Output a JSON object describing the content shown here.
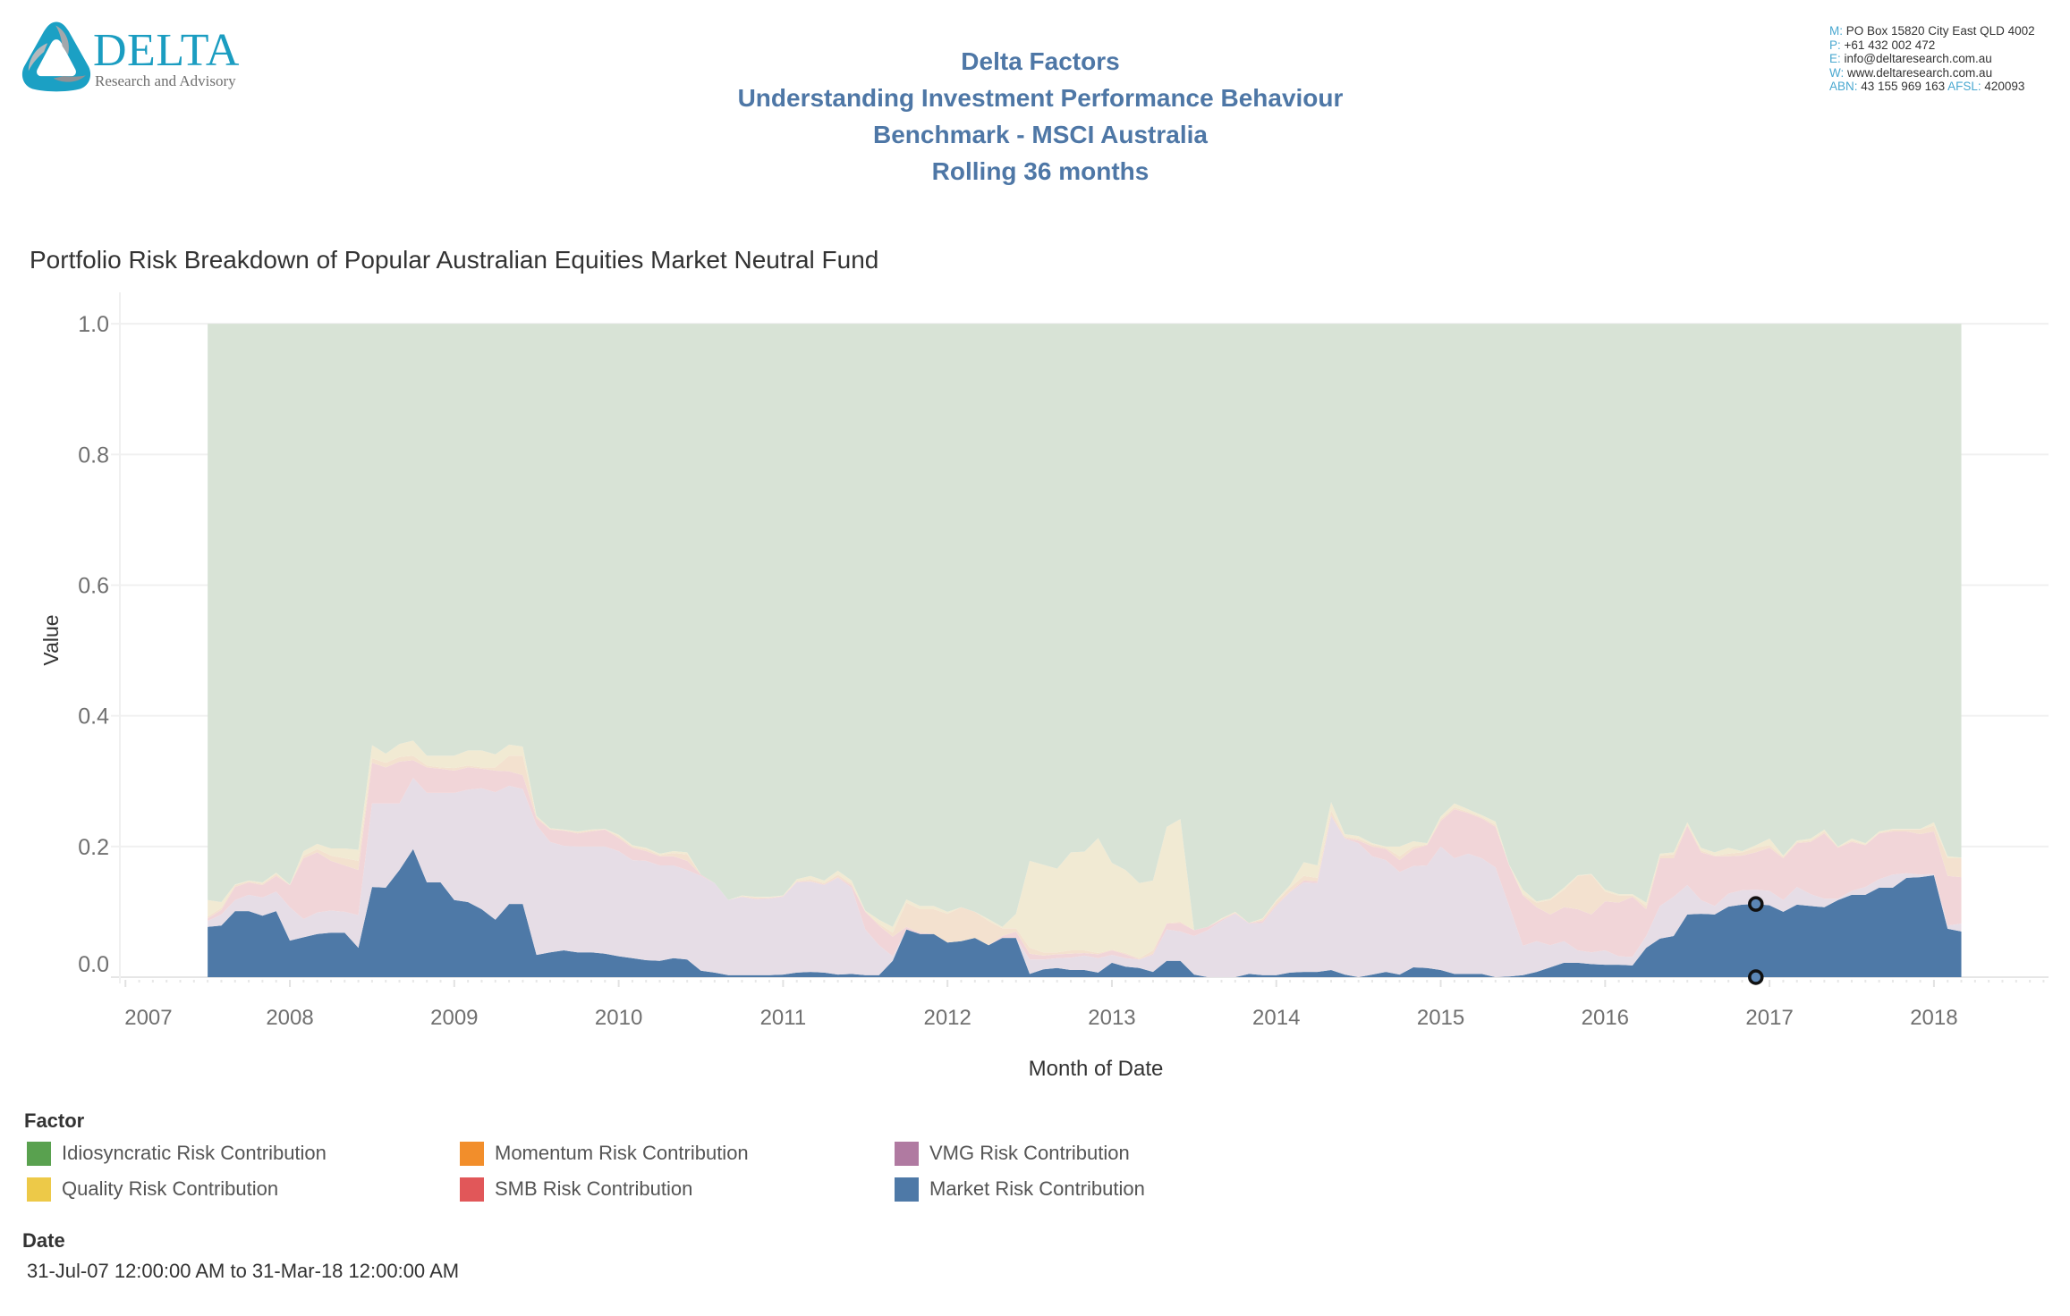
{
  "logo": {
    "name": "DELTA",
    "tagline": "Research and Advisory"
  },
  "header": {
    "lines": [
      "Delta Factors",
      "Understanding Investment Performance Behaviour",
      "Benchmark - MSCI Australia",
      "Rolling 36 months"
    ]
  },
  "contact": {
    "lines": [
      {
        "label": "M:",
        "value": " PO Box 15820 City East QLD 4002"
      },
      {
        "label": "P:",
        "value": " +61 432 002 472"
      },
      {
        "label": "E:",
        "value": " info@deltaresearch.com.au"
      },
      {
        "label": "W:",
        "value": " www.deltaresearch.com.au"
      }
    ],
    "abn_label": "ABN:",
    "abn": " 43 155 969 163 ",
    "afsl_label": " AFSL:",
    "afsl": " 420093"
  },
  "filters": {
    "date_title": "Date",
    "date_range": "31-Jul-07 12:00:00 AM to 31-Mar-18 12:00:00 AM"
  },
  "colors": {
    "header_text": "#4e77a6",
    "accent": "#1b9dc1"
  },
  "chart_data": {
    "type": "area",
    "stacked": true,
    "title": "Portfolio Risk Breakdown of Popular Australian Equities Market Neutral Fund",
    "xlabel": "Month of Date",
    "ylabel": "Value",
    "x_start": "2007-07",
    "x_end": "2018-03",
    "x_frequency": "monthly",
    "xlim": [
      2006.966,
      2018.697
    ],
    "ylim": [
      0,
      1.044
    ],
    "x_ticks": [
      "2007",
      "2008",
      "2009",
      "2010",
      "2011",
      "2012",
      "2013",
      "2014",
      "2015",
      "2016",
      "2017",
      "2018"
    ],
    "y_ticks": [
      {
        "value": 0,
        "label": "0.0"
      },
      {
        "value": 0.2,
        "label": "0.2"
      },
      {
        "value": 0.4,
        "label": "0.4"
      },
      {
        "value": 0.6,
        "label": "0.6"
      },
      {
        "value": 0.8,
        "label": "0.8"
      },
      {
        "value": 1.0,
        "label": "1.0"
      }
    ],
    "grid": "horizontal",
    "legend_title": "Factor",
    "legend_position": "bottom-left",
    "legend_order": [
      "Idiosyncratic Risk Contribution",
      "Momentum Risk Contribution",
      "VMG Risk Contribution",
      "Quality Risk Contribution",
      "SMB Risk Contribution",
      "Market Risk Contribution"
    ],
    "highlight": {
      "series": "Market Risk Contribution",
      "month_index": 113
    },
    "series": [
      {
        "name": "Market Risk Contribution",
        "color": "#4e79a7",
        "fill": "#4e79a7",
        "values": [
          0.077,
          0.079,
          0.101,
          0.101,
          0.094,
          0.101,
          0.056,
          0.061,
          0.066,
          0.068,
          0.068,
          0.045,
          0.138,
          0.137,
          0.164,
          0.196,
          0.145,
          0.145,
          0.118,
          0.115,
          0.104,
          0.088,
          0.112,
          0.112,
          0.034,
          0.038,
          0.041,
          0.038,
          0.038,
          0.036,
          0.032,
          0.029,
          0.026,
          0.025,
          0.029,
          0.027,
          0.01,
          0.007,
          0.003,
          0.003,
          0.003,
          0.003,
          0.004,
          0.007,
          0.008,
          0.007,
          0.004,
          0.005,
          0.003,
          0.003,
          0.025,
          0.073,
          0.066,
          0.066,
          0.053,
          0.055,
          0.06,
          0.049,
          0.06,
          0.06,
          0.005,
          0.012,
          0.014,
          0.011,
          0.011,
          0.007,
          0.022,
          0.016,
          0.014,
          0.008,
          0.025,
          0.025,
          0.004,
          0,
          0,
          0,
          0.005,
          0.003,
          0.003,
          0.007,
          0.008,
          0.008,
          0.011,
          0.004,
          0,
          0.004,
          0.008,
          0.004,
          0.015,
          0.014,
          0.011,
          0.005,
          0.005,
          0.005,
          0,
          0.001,
          0.003,
          0.008,
          0.015,
          0.022,
          0.022,
          0.02,
          0.019,
          0.019,
          0.018,
          0.045,
          0.059,
          0.063,
          0.096,
          0.097,
          0.096,
          0.108,
          0.111,
          0.112,
          0.11,
          0.1,
          0.111,
          0.109,
          0.107,
          0.118,
          0.126,
          0.126,
          0.137,
          0.137,
          0.152,
          0.153,
          0.156,
          0.074,
          0.07
        ]
      },
      {
        "name": "VMG Risk Contribution",
        "color": "#b07aa1",
        "fill": "#e6dde6",
        "values": [
          0.009,
          0.017,
          0.017,
          0.025,
          0.028,
          0.03,
          0.051,
          0.028,
          0.033,
          0.034,
          0.032,
          0.05,
          0.128,
          0.129,
          0.102,
          0.109,
          0.137,
          0.137,
          0.164,
          0.172,
          0.185,
          0.195,
          0.181,
          0.176,
          0.199,
          0.169,
          0.16,
          0.162,
          0.162,
          0.164,
          0.161,
          0.15,
          0.152,
          0.146,
          0.142,
          0.137,
          0.145,
          0.137,
          0.115,
          0.12,
          0.116,
          0.117,
          0.119,
          0.138,
          0.138,
          0.134,
          0.148,
          0.132,
          0.07,
          0.046,
          0.007,
          0,
          0,
          0,
          0,
          0,
          0,
          0,
          0,
          0,
          0.022,
          0.015,
          0.015,
          0.019,
          0.022,
          0.022,
          0.012,
          0.013,
          0.013,
          0.026,
          0.048,
          0.045,
          0.059,
          0.072,
          0.086,
          0.097,
          0.077,
          0.08,
          0.106,
          0.123,
          0.137,
          0.136,
          0.235,
          0.208,
          0.205,
          0.181,
          0.171,
          0.157,
          0.155,
          0.157,
          0.189,
          0.177,
          0.184,
          0.177,
          0.168,
          0.108,
          0.045,
          0.047,
          0.034,
          0.033,
          0.019,
          0.018,
          0.022,
          0.013,
          0.013,
          0.018,
          0.05,
          0.06,
          0.045,
          0.021,
          0.013,
          0.02,
          0.022,
          0.022,
          0.022,
          0.018,
          0.027,
          0.018,
          0.013,
          0.002,
          0.006,
          0.012,
          0.013,
          0.02,
          0.007,
          0.004,
          0.002,
          0.005,
          0.012
        ]
      },
      {
        "name": "SMB Risk Contribution",
        "color": "#e15759",
        "fill": "#f1d5d8",
        "values": [
          0.004,
          0.007,
          0.02,
          0.019,
          0.019,
          0.024,
          0.034,
          0.093,
          0.092,
          0.076,
          0.071,
          0.069,
          0.062,
          0.055,
          0.064,
          0.027,
          0.039,
          0.037,
          0.034,
          0.034,
          0.03,
          0.033,
          0.022,
          0.021,
          0.01,
          0.019,
          0.023,
          0.02,
          0.023,
          0.026,
          0.02,
          0.019,
          0.015,
          0.014,
          0.014,
          0.014,
          0.002,
          0,
          0,
          0,
          0.001,
          0.001,
          0.001,
          0.001,
          0.001,
          0.001,
          0.001,
          0.003,
          0.027,
          0.03,
          0.03,
          0.004,
          0.002,
          0,
          0,
          0,
          0,
          0,
          0.003,
          0.01,
          0.009,
          0.006,
          0.006,
          0.006,
          0.004,
          0.006,
          0.007,
          0.006,
          0,
          0.002,
          0.009,
          0.013,
          0.009,
          0.005,
          0.002,
          0.001,
          0.001,
          0.003,
          0.002,
          0.001,
          0.003,
          0.003,
          0.002,
          0.001,
          0.004,
          0.015,
          0.017,
          0.018,
          0.026,
          0.031,
          0.039,
          0.075,
          0.062,
          0.061,
          0.062,
          0.062,
          0.077,
          0.052,
          0.047,
          0.052,
          0.063,
          0.058,
          0.075,
          0.082,
          0.092,
          0.041,
          0.073,
          0.059,
          0.091,
          0.073,
          0.076,
          0.057,
          0.053,
          0.057,
          0.066,
          0.064,
          0.067,
          0.08,
          0.1,
          0.078,
          0.075,
          0.064,
          0.07,
          0.066,
          0.064,
          0.062,
          0.065,
          0.076,
          0.071
        ]
      },
      {
        "name": "Momentum Risk Contribution",
        "color": "#f28e2b",
        "fill": "#f3e1cf",
        "values": [
          0.003,
          0.003,
          0.003,
          0.002,
          0.002,
          0.003,
          0,
          0.004,
          0.005,
          0.008,
          0.011,
          0.014,
          0.007,
          0.007,
          0.007,
          0.007,
          0.003,
          0.002,
          0.004,
          0.003,
          0.002,
          0.005,
          0.024,
          0.03,
          0.003,
          0.001,
          0.001,
          0.002,
          0.002,
          0,
          0.003,
          0.002,
          0.003,
          0.002,
          0.005,
          0.01,
          0,
          0,
          0,
          0.001,
          0.002,
          0.001,
          0,
          0.001,
          0.003,
          0.002,
          0.004,
          0.003,
          0,
          0.003,
          0.006,
          0.037,
          0.036,
          0.038,
          0.044,
          0.052,
          0.04,
          0.037,
          0.012,
          0.005,
          0.009,
          0.005,
          0.003,
          0.005,
          0.004,
          0.002,
          0.001,
          0.002,
          0.002,
          0.005,
          0.001,
          0.002,
          0,
          0,
          0.001,
          0.001,
          0,
          0.003,
          0.005,
          0.006,
          0.007,
          0.005,
          0.007,
          0.002,
          0.003,
          0.003,
          0.002,
          0.006,
          0.004,
          0.001,
          0.003,
          0.003,
          0.002,
          0.002,
          0.003,
          0,
          0.002,
          0.007,
          0.022,
          0.027,
          0.051,
          0.061,
          0.015,
          0.011,
          0.002,
          0.005,
          0.004,
          0.006,
          0.002,
          0.003,
          0.001,
          0.004,
          0.005,
          0.007,
          0.004,
          0.002,
          0.002,
          0.002,
          0.003,
          0.001,
          0.002,
          0.001,
          0.001,
          0.003,
          0.003,
          0.007,
          0.009,
          0.027,
          0.029
        ]
      },
      {
        "name": "Quality Risk Contribution",
        "color": "#edc948",
        "fill": "#f1ead3",
        "values": [
          0.025,
          0.009,
          0.001,
          0.001,
          0.002,
          0.002,
          0.001,
          0.007,
          0.008,
          0.011,
          0.015,
          0.017,
          0.02,
          0.014,
          0.02,
          0.023,
          0.015,
          0.018,
          0.019,
          0.023,
          0.026,
          0.02,
          0.017,
          0.014,
          0.001,
          0.001,
          0.001,
          0.001,
          0.001,
          0.001,
          0.002,
          0.002,
          0.002,
          0.002,
          0.003,
          0.003,
          0,
          0,
          0,
          0.001,
          0.001,
          0.001,
          0.001,
          0.003,
          0.005,
          0.004,
          0.006,
          0.005,
          0.002,
          0.006,
          0.009,
          0.005,
          0.005,
          0.005,
          0.003,
          0,
          0,
          0.003,
          0.002,
          0.022,
          0.133,
          0.134,
          0.128,
          0.15,
          0.151,
          0.176,
          0.133,
          0.127,
          0.115,
          0.107,
          0.147,
          0.157,
          0,
          0,
          0.001,
          0.001,
          0,
          0.001,
          0.002,
          0.004,
          0.021,
          0.019,
          0.013,
          0.004,
          0.004,
          0.002,
          0.002,
          0.015,
          0.008,
          0.002,
          0.004,
          0.006,
          0.004,
          0.003,
          0.005,
          0.001,
          0.007,
          0.002,
          0.002,
          0.003,
          0.001,
          0.001,
          0.003,
          0.002,
          0.002,
          0.005,
          0.003,
          0.003,
          0.003,
          0.004,
          0.005,
          0.009,
          0.002,
          0.004,
          0.01,
          0.002,
          0.002,
          0.003,
          0.003,
          0.001,
          0.003,
          0.002,
          0.002,
          0.001,
          0.001,
          0.001,
          0.005,
          0.003,
          0.001
        ]
      },
      {
        "name": "Idiosyncratic Risk Contribution",
        "color": "#59a14f",
        "fill": "#d8e3d6",
        "values": [
          0.882,
          0.885,
          0.858,
          0.852,
          0.855,
          0.84,
          0.858,
          0.807,
          0.796,
          0.803,
          0.803,
          0.805,
          0.645,
          0.658,
          0.643,
          0.638,
          0.661,
          0.661,
          0.661,
          0.653,
          0.653,
          0.659,
          0.644,
          0.647,
          0.753,
          0.772,
          0.774,
          0.777,
          0.774,
          0.773,
          0.782,
          0.798,
          0.802,
          0.811,
          0.807,
          0.809,
          0.843,
          0.856,
          0.882,
          0.875,
          0.877,
          0.877,
          0.875,
          0.85,
          0.845,
          0.852,
          0.837,
          0.852,
          0.898,
          0.912,
          0.923,
          0.881,
          0.891,
          0.891,
          0.9,
          0.893,
          0.9,
          0.911,
          0.923,
          0.903,
          0.822,
          0.828,
          0.834,
          0.809,
          0.808,
          0.787,
          0.825,
          0.836,
          0.856,
          0.852,
          0.77,
          0.758,
          0.928,
          0.923,
          0.91,
          0.9,
          0.917,
          0.91,
          0.882,
          0.859,
          0.824,
          0.829,
          0.732,
          0.781,
          0.784,
          0.795,
          0.8,
          0.8,
          0.792,
          0.795,
          0.754,
          0.734,
          0.743,
          0.752,
          0.762,
          0.828,
          0.866,
          0.884,
          0.88,
          0.863,
          0.844,
          0.842,
          0.866,
          0.873,
          0.873,
          0.886,
          0.811,
          0.809,
          0.763,
          0.802,
          0.809,
          0.802,
          0.807,
          0.798,
          0.788,
          0.814,
          0.791,
          0.788,
          0.774,
          0.8,
          0.788,
          0.795,
          0.777,
          0.773,
          0.773,
          0.773,
          0.763,
          0.815,
          0.817
        ]
      }
    ]
  }
}
